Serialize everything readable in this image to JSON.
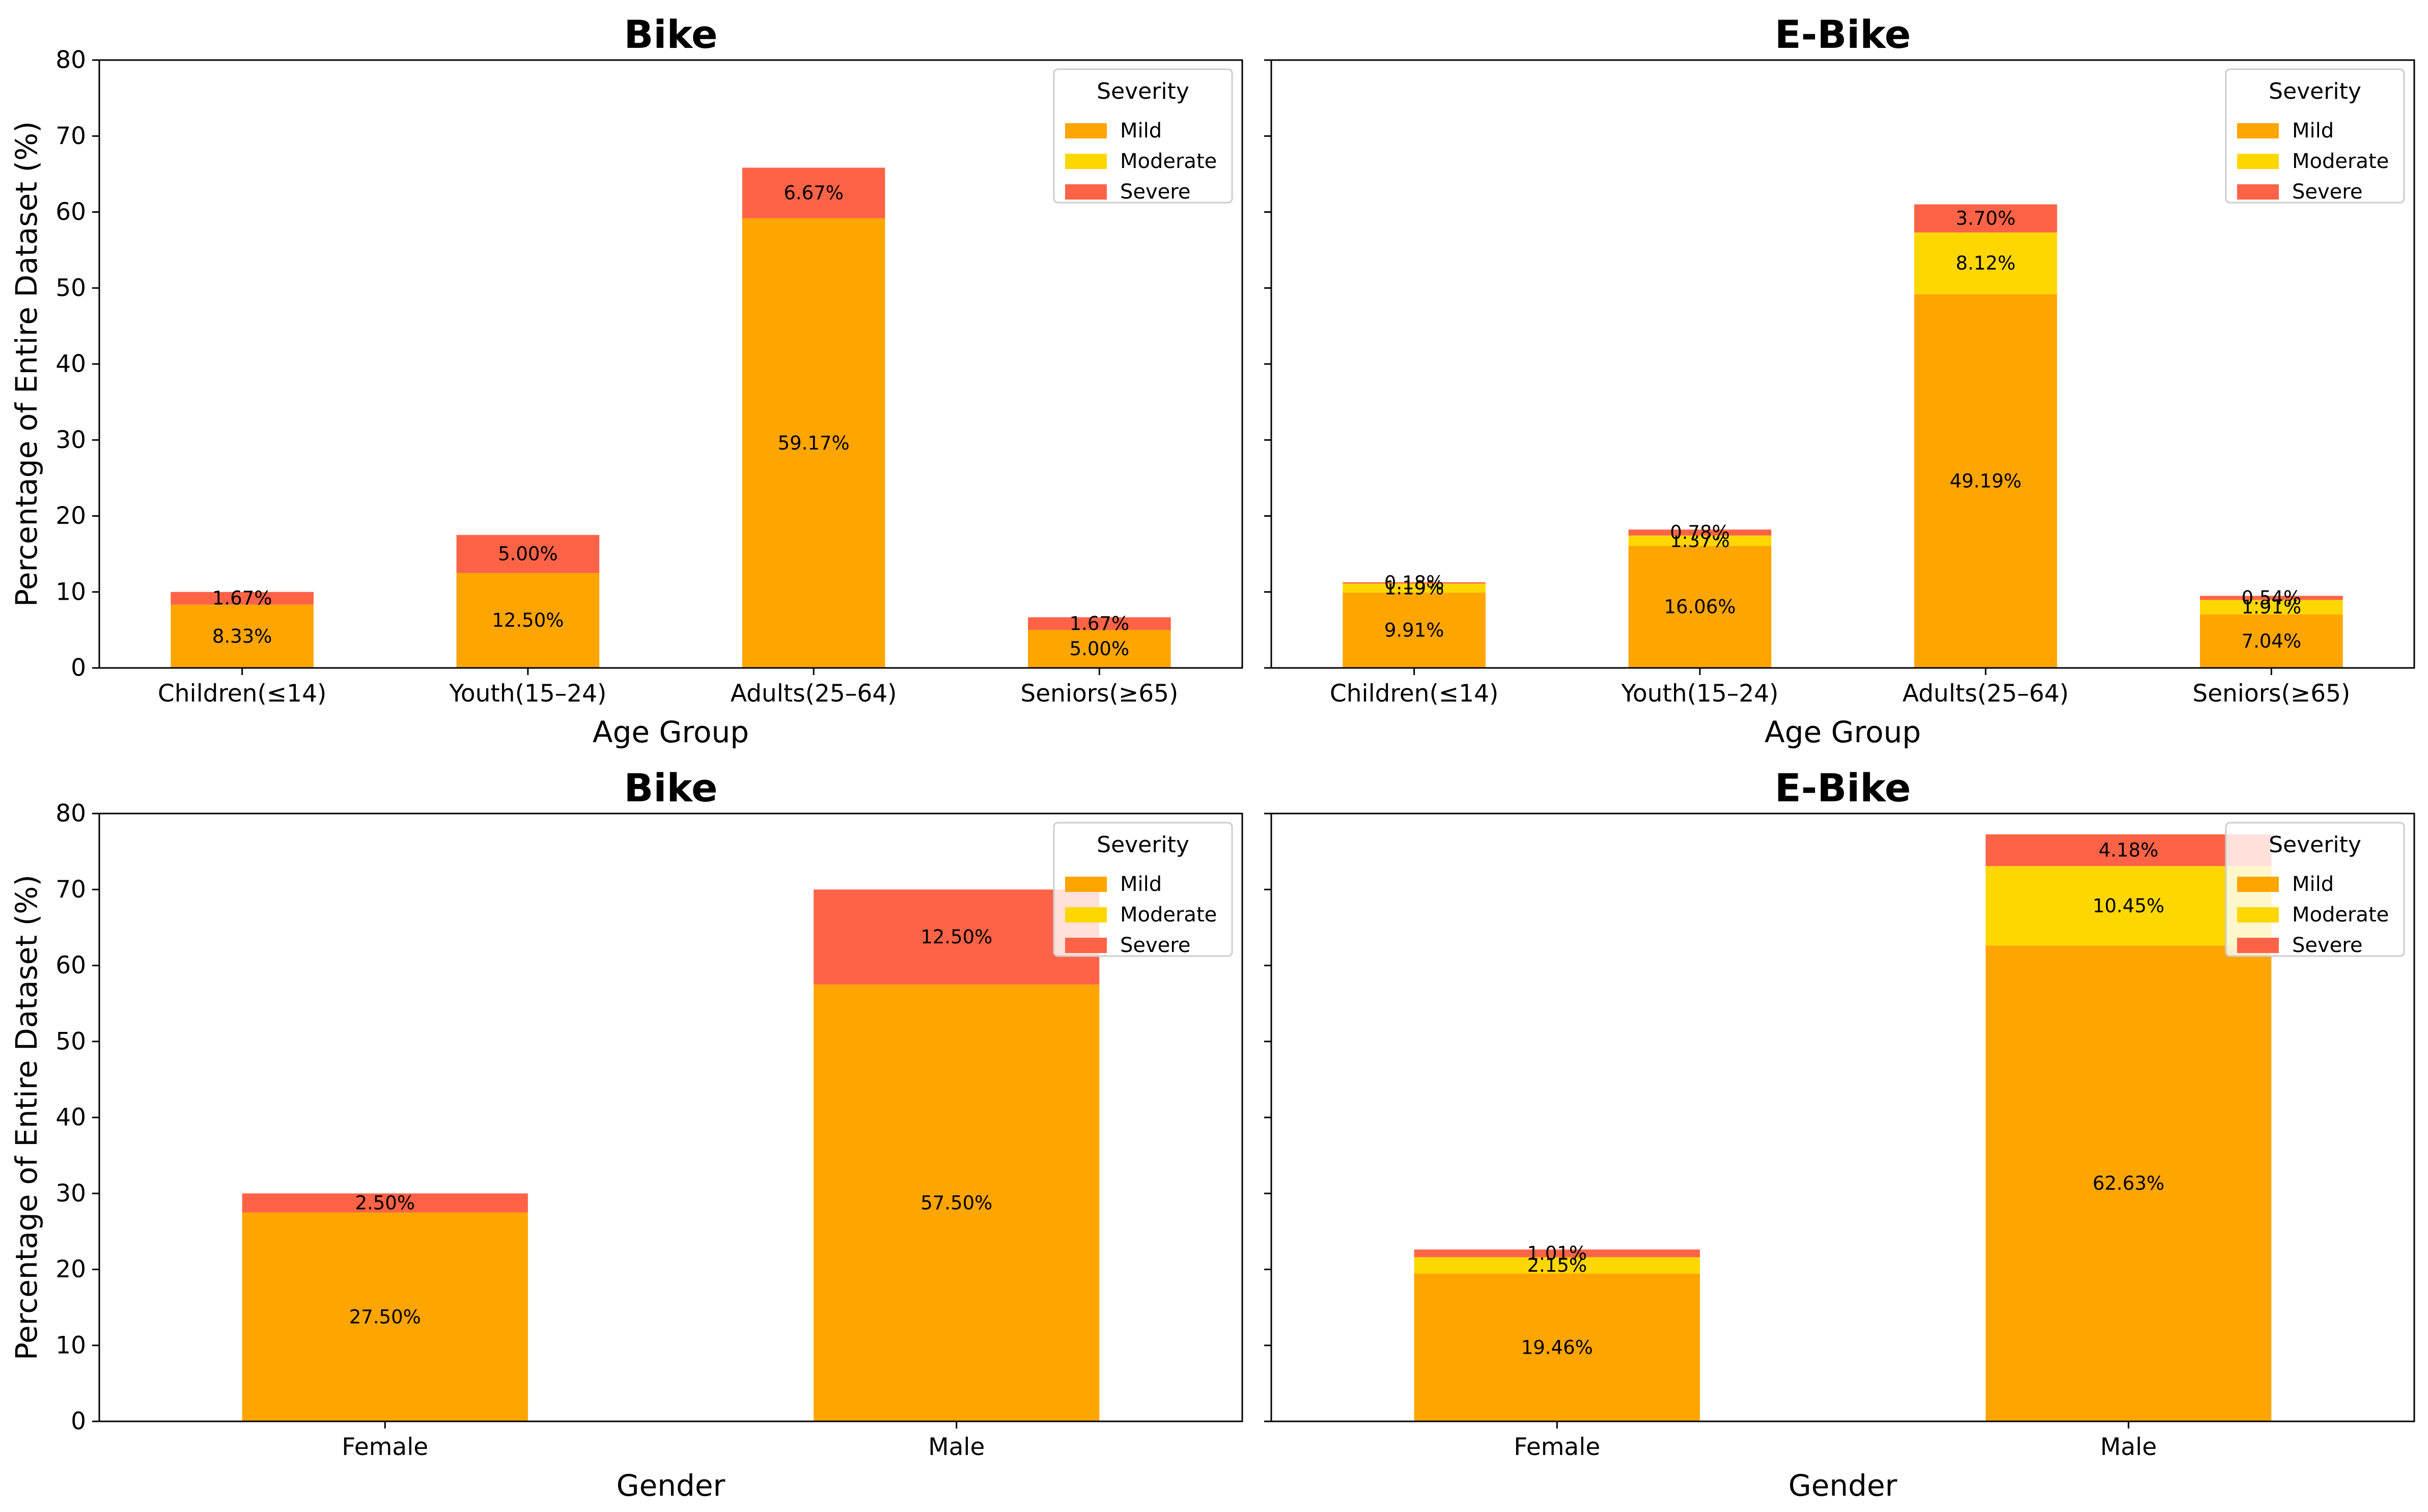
{
  "colors": {
    "Mild": "#FFA500",
    "Moderate": "#FFD700",
    "Severe": "#FF6347"
  },
  "chart_data": [
    {
      "type": "bar",
      "stacked": true,
      "title": "Bike",
      "xlabel": "Age Group",
      "ylabel": "Percentage of Entire Dataset (%)",
      "ylim": [
        0,
        80
      ],
      "yticks": [
        0,
        10,
        20,
        30,
        40,
        50,
        60,
        70,
        80
      ],
      "categories": [
        "Children(≤14)",
        "Youth(15–24)",
        "Adults(25–64)",
        "Seniors(≥65)"
      ],
      "legend": {
        "title": "Severity",
        "entries": [
          "Mild",
          "Moderate",
          "Severe"
        ],
        "position": "top-right"
      },
      "series": [
        {
          "name": "Mild",
          "values": [
            8.33,
            12.5,
            59.17,
            5.0
          ],
          "labels": [
            "8.33%",
            "12.50%",
            "59.17%",
            "5.00%"
          ]
        },
        {
          "name": "Moderate",
          "values": [
            0,
            0,
            0,
            0
          ],
          "labels": [
            "",
            "",
            "",
            ""
          ]
        },
        {
          "name": "Severe",
          "values": [
            1.67,
            5.0,
            6.67,
            1.67
          ],
          "labels": [
            "1.67%",
            "5.00%",
            "6.67%",
            "1.67%"
          ]
        }
      ]
    },
    {
      "type": "bar",
      "stacked": true,
      "title": "E-Bike",
      "xlabel": "Age Group",
      "ylabel": "",
      "ylim": [
        0,
        80
      ],
      "yticks": [
        0,
        10,
        20,
        30,
        40,
        50,
        60,
        70,
        80
      ],
      "categories": [
        "Children(≤14)",
        "Youth(15–24)",
        "Adults(25–64)",
        "Seniors(≥65)"
      ],
      "legend": {
        "title": "Severity",
        "entries": [
          "Mild",
          "Moderate",
          "Severe"
        ],
        "position": "top-right"
      },
      "series": [
        {
          "name": "Mild",
          "values": [
            9.91,
            16.06,
            49.19,
            7.04
          ],
          "labels": [
            "9.91%",
            "16.06%",
            "49.19%",
            "7.04%"
          ]
        },
        {
          "name": "Moderate",
          "values": [
            1.19,
            1.37,
            8.12,
            1.91
          ],
          "labels": [
            "1.19%",
            "1.37%",
            "8.12%",
            "1.91%"
          ]
        },
        {
          "name": "Severe",
          "values": [
            0.18,
            0.78,
            3.7,
            0.54
          ],
          "labels": [
            "0.18%",
            "0.78%",
            "3.70%",
            "0.54%"
          ]
        }
      ]
    },
    {
      "type": "bar",
      "stacked": true,
      "title": "Bike",
      "xlabel": "Gender",
      "ylabel": "Percentage of Entire Dataset (%)",
      "ylim": [
        0,
        80
      ],
      "yticks": [
        0,
        10,
        20,
        30,
        40,
        50,
        60,
        70,
        80
      ],
      "categories": [
        "Female",
        "Male"
      ],
      "legend": {
        "title": "Severity",
        "entries": [
          "Mild",
          "Moderate",
          "Severe"
        ],
        "position": "top-right"
      },
      "series": [
        {
          "name": "Mild",
          "values": [
            27.5,
            57.5
          ],
          "labels": [
            "27.50%",
            "57.50%"
          ]
        },
        {
          "name": "Moderate",
          "values": [
            0,
            0
          ],
          "labels": [
            "",
            ""
          ]
        },
        {
          "name": "Severe",
          "values": [
            2.5,
            12.5
          ],
          "labels": [
            "2.50%",
            "12.50%"
          ]
        }
      ]
    },
    {
      "type": "bar",
      "stacked": true,
      "title": "E-Bike",
      "xlabel": "Gender",
      "ylabel": "",
      "ylim": [
        0,
        80
      ],
      "yticks": [
        0,
        10,
        20,
        30,
        40,
        50,
        60,
        70,
        80
      ],
      "categories": [
        "Female",
        "Male"
      ],
      "legend": {
        "title": "Severity",
        "entries": [
          "Mild",
          "Moderate",
          "Severe"
        ],
        "position": "top-right"
      },
      "series": [
        {
          "name": "Mild",
          "values": [
            19.46,
            62.63
          ],
          "labels": [
            "19.46%",
            "62.63%"
          ]
        },
        {
          "name": "Moderate",
          "values": [
            2.15,
            10.45
          ],
          "labels": [
            "2.15%",
            "10.45%"
          ]
        },
        {
          "name": "Severe",
          "values": [
            1.01,
            4.18
          ],
          "labels": [
            "1.01%",
            "4.18%"
          ]
        }
      ]
    }
  ]
}
